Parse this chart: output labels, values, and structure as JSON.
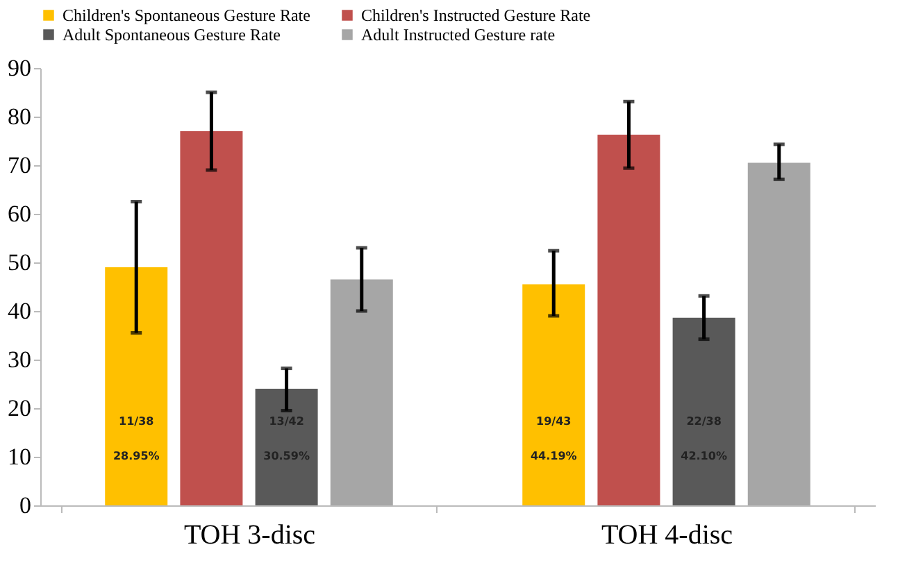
{
  "chart_data": {
    "type": "bar",
    "categories": [
      "TOH 3-disc",
      "TOH 4-disc"
    ],
    "series": [
      {
        "name": "Children's Spontaneous Gesture Rate",
        "color": "#ffc000",
        "values": [
          49,
          45.5
        ],
        "errors": [
          [
            35.5,
            62.5
          ],
          [
            39,
            52.4
          ]
        ]
      },
      {
        "name": "Children's Instructed Gesture Rate",
        "color": "#c0504d",
        "values": [
          77,
          76.3
        ],
        "errors": [
          [
            69,
            85
          ],
          [
            69.4,
            83.1
          ]
        ]
      },
      {
        "name": "Adult Spontaneous Gesture Rate",
        "color": "#595959",
        "values": [
          24,
          38.6
        ],
        "errors": [
          [
            19.5,
            28.2
          ],
          [
            34.2,
            43.1
          ]
        ]
      },
      {
        "name": "Adult Instructed Gesture rate",
        "color": "#a6a6a6",
        "values": [
          46.5,
          70.5
        ],
        "errors": [
          [
            40,
            53
          ],
          [
            67.1,
            74.3
          ]
        ]
      }
    ],
    "annotations": [
      "11/38",
      "28.95%",
      "13/42",
      "30.59%",
      "19/43",
      "44.19%",
      "22/38",
      "42.10%"
    ],
    "ylim": [
      0,
      90
    ],
    "yticks": [
      0,
      10,
      20,
      30,
      40,
      50,
      60,
      70,
      80,
      90
    ],
    "grid": false,
    "legend": "top"
  }
}
